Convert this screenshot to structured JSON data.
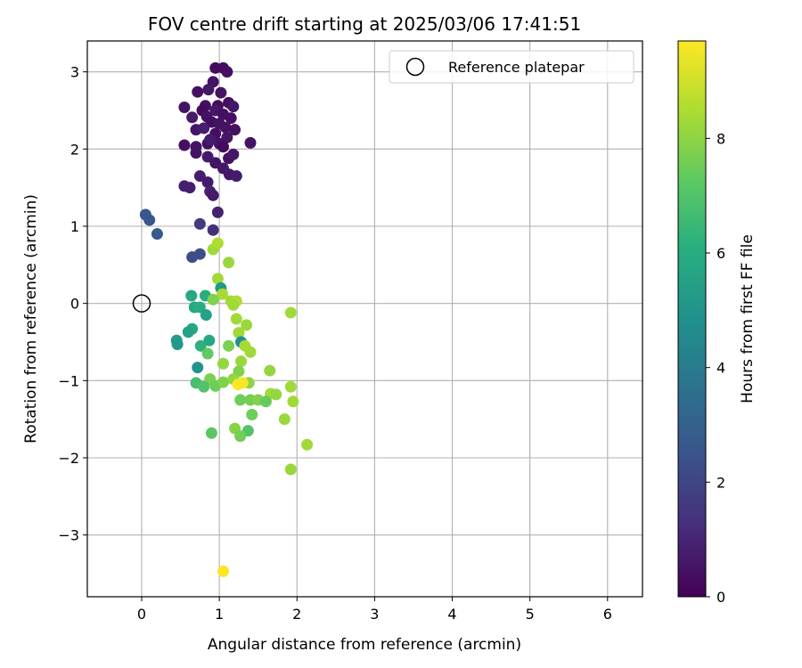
{
  "chart_data": {
    "type": "scatter",
    "title": "FOV centre drift starting at 2025/03/06 17:41:51",
    "xlabel": "Angular distance from reference (arcmin)",
    "ylabel": "Rotation from reference (arcmin)",
    "colorbar_label": "Hours from first FF file",
    "xlim": [
      -0.7,
      6.45
    ],
    "ylim": [
      -3.8,
      3.4
    ],
    "xticks": [
      0,
      1,
      2,
      3,
      4,
      5,
      6
    ],
    "yticks": [
      -3,
      -2,
      -1,
      0,
      1,
      2,
      3
    ],
    "xtick_labels": [
      "0",
      "1",
      "2",
      "3",
      "4",
      "5",
      "6"
    ],
    "ytick_labels": [
      "−3",
      "−2",
      "−1",
      "0",
      "1",
      "2",
      "3"
    ],
    "colorbar_range": [
      0,
      9.7
    ],
    "colorbar_ticks": [
      0,
      2,
      4,
      6,
      8
    ],
    "colorbar_tick_labels": [
      "0",
      "2",
      "4",
      "6",
      "8"
    ],
    "colormap": "viridis",
    "grid": true,
    "legend": {
      "placement": "top-right",
      "entries": [
        "Reference platepar"
      ]
    },
    "reference_point": {
      "x": 0,
      "y": 0
    },
    "points": [
      {
        "x": 0.95,
        "y": 3.05,
        "h": 0.3
      },
      {
        "x": 1.05,
        "y": 3.05,
        "h": 0.35
      },
      {
        "x": 1.1,
        "y": 3.0,
        "h": 0.4
      },
      {
        "x": 0.92,
        "y": 2.87,
        "h": 0.5
      },
      {
        "x": 0.72,
        "y": 2.74,
        "h": 0.4
      },
      {
        "x": 0.86,
        "y": 2.77,
        "h": 0.6
      },
      {
        "x": 1.02,
        "y": 2.73,
        "h": 0.5
      },
      {
        "x": 0.55,
        "y": 2.54,
        "h": 0.5
      },
      {
        "x": 0.82,
        "y": 2.56,
        "h": 0.4
      },
      {
        "x": 0.78,
        "y": 2.5,
        "h": 0.3
      },
      {
        "x": 0.98,
        "y": 2.56,
        "h": 0.3
      },
      {
        "x": 1.12,
        "y": 2.6,
        "h": 0.4
      },
      {
        "x": 1.18,
        "y": 2.55,
        "h": 0.6
      },
      {
        "x": 0.65,
        "y": 2.41,
        "h": 0.7
      },
      {
        "x": 0.84,
        "y": 2.42,
        "h": 0.5
      },
      {
        "x": 0.95,
        "y": 2.5,
        "h": 0.6
      },
      {
        "x": 1.05,
        "y": 2.45,
        "h": 0.4
      },
      {
        "x": 1.15,
        "y": 2.4,
        "h": 0.4
      },
      {
        "x": 0.9,
        "y": 2.35,
        "h": 0.3
      },
      {
        "x": 1.0,
        "y": 2.33,
        "h": 0.5
      },
      {
        "x": 1.08,
        "y": 2.28,
        "h": 0.5
      },
      {
        "x": 0.7,
        "y": 2.25,
        "h": 0.6
      },
      {
        "x": 0.8,
        "y": 2.27,
        "h": 0.8
      },
      {
        "x": 0.95,
        "y": 2.2,
        "h": 0.4
      },
      {
        "x": 1.1,
        "y": 2.15,
        "h": 0.6
      },
      {
        "x": 1.2,
        "y": 2.25,
        "h": 0.4
      },
      {
        "x": 0.55,
        "y": 2.05,
        "h": 0.4
      },
      {
        "x": 0.7,
        "y": 2.03,
        "h": 0.5
      },
      {
        "x": 0.85,
        "y": 2.07,
        "h": 0.4
      },
      {
        "x": 1.0,
        "y": 2.07,
        "h": 0.5
      },
      {
        "x": 1.05,
        "y": 2.03,
        "h": 0.3
      },
      {
        "x": 0.88,
        "y": 2.12,
        "h": 0.7
      },
      {
        "x": 1.4,
        "y": 2.08,
        "h": 0.5
      },
      {
        "x": 0.7,
        "y": 1.95,
        "h": 0.5
      },
      {
        "x": 0.85,
        "y": 1.9,
        "h": 0.7
      },
      {
        "x": 1.12,
        "y": 1.88,
        "h": 0.4
      },
      {
        "x": 1.18,
        "y": 1.93,
        "h": 0.6
      },
      {
        "x": 0.95,
        "y": 1.82,
        "h": 0.5
      },
      {
        "x": 1.05,
        "y": 1.75,
        "h": 0.6
      },
      {
        "x": 0.75,
        "y": 1.65,
        "h": 0.8
      },
      {
        "x": 0.85,
        "y": 1.57,
        "h": 0.7
      },
      {
        "x": 1.13,
        "y": 1.67,
        "h": 0.6
      },
      {
        "x": 1.22,
        "y": 1.65,
        "h": 0.7
      },
      {
        "x": 0.55,
        "y": 1.52,
        "h": 0.8
      },
      {
        "x": 0.62,
        "y": 1.5,
        "h": 0.8
      },
      {
        "x": 0.88,
        "y": 1.45,
        "h": 0.9
      },
      {
        "x": 0.92,
        "y": 1.4,
        "h": 0.7
      },
      {
        "x": 0.98,
        "y": 1.18,
        "h": 0.9
      },
      {
        "x": 0.05,
        "y": 1.15,
        "h": 2.7
      },
      {
        "x": 0.1,
        "y": 1.08,
        "h": 2.6
      },
      {
        "x": 0.2,
        "y": 0.9,
        "h": 2.8
      },
      {
        "x": 0.75,
        "y": 1.03,
        "h": 1.6
      },
      {
        "x": 0.92,
        "y": 0.95,
        "h": 1.3
      },
      {
        "x": 0.65,
        "y": 0.6,
        "h": 2.3
      },
      {
        "x": 0.75,
        "y": 0.64,
        "h": 2.3
      },
      {
        "x": 0.92,
        "y": 0.7,
        "h": 8.3
      },
      {
        "x": 0.98,
        "y": 0.78,
        "h": 8.5
      },
      {
        "x": 1.12,
        "y": 0.53,
        "h": 8.2
      },
      {
        "x": 0.98,
        "y": 0.32,
        "h": 8.3
      },
      {
        "x": 1.02,
        "y": 0.2,
        "h": 5.2
      },
      {
        "x": 1.04,
        "y": 0.12,
        "h": 8.4
      },
      {
        "x": 0.64,
        "y": 0.1,
        "h": 5.8
      },
      {
        "x": 0.82,
        "y": 0.1,
        "h": 6.0
      },
      {
        "x": 0.92,
        "y": 0.05,
        "h": 7.8
      },
      {
        "x": 1.15,
        "y": 0.03,
        "h": 8.3
      },
      {
        "x": 1.22,
        "y": 0.03,
        "h": 8.5
      },
      {
        "x": 1.18,
        "y": -0.02,
        "h": 8.3
      },
      {
        "x": 0.68,
        "y": -0.05,
        "h": 5.8
      },
      {
        "x": 0.75,
        "y": -0.05,
        "h": 6.0
      },
      {
        "x": 0.83,
        "y": -0.15,
        "h": 5.5
      },
      {
        "x": 1.22,
        "y": -0.2,
        "h": 8.3
      },
      {
        "x": 1.35,
        "y": -0.28,
        "h": 8.2
      },
      {
        "x": 1.92,
        "y": -0.12,
        "h": 8.3
      },
      {
        "x": 0.65,
        "y": -0.33,
        "h": 5.8
      },
      {
        "x": 0.6,
        "y": -0.37,
        "h": 5.5
      },
      {
        "x": 1.25,
        "y": -0.38,
        "h": 8.3
      },
      {
        "x": 0.45,
        "y": -0.48,
        "h": 5.3
      },
      {
        "x": 0.46,
        "y": -0.53,
        "h": 5.2
      },
      {
        "x": 0.87,
        "y": -0.48,
        "h": 5.8
      },
      {
        "x": 0.76,
        "y": -0.55,
        "h": 6.2
      },
      {
        "x": 1.28,
        "y": -0.5,
        "h": 4.8
      },
      {
        "x": 1.12,
        "y": -0.55,
        "h": 7.7
      },
      {
        "x": 1.33,
        "y": -0.55,
        "h": 8.4
      },
      {
        "x": 0.85,
        "y": -0.65,
        "h": 7.3
      },
      {
        "x": 1.4,
        "y": -0.63,
        "h": 8.3
      },
      {
        "x": 1.28,
        "y": -0.75,
        "h": 8.2
      },
      {
        "x": 1.05,
        "y": -0.78,
        "h": 8.1
      },
      {
        "x": 0.72,
        "y": -0.83,
        "h": 5.0
      },
      {
        "x": 1.25,
        "y": -0.88,
        "h": 7.8
      },
      {
        "x": 1.65,
        "y": -0.87,
        "h": 8.1
      },
      {
        "x": 0.88,
        "y": -0.98,
        "h": 7.7
      },
      {
        "x": 1.18,
        "y": -0.98,
        "h": 8.1
      },
      {
        "x": 1.38,
        "y": -1.03,
        "h": 8.0
      },
      {
        "x": 0.7,
        "y": -1.03,
        "h": 6.8
      },
      {
        "x": 0.8,
        "y": -1.08,
        "h": 7.0
      },
      {
        "x": 0.95,
        "y": -1.07,
        "h": 7.5
      },
      {
        "x": 1.05,
        "y": -1.02,
        "h": 7.8
      },
      {
        "x": 1.24,
        "y": -1.05,
        "h": 9.7
      },
      {
        "x": 1.3,
        "y": -1.03,
        "h": 9.6
      },
      {
        "x": 1.92,
        "y": -1.08,
        "h": 8.3
      },
      {
        "x": 1.66,
        "y": -1.17,
        "h": 8.3
      },
      {
        "x": 1.73,
        "y": -1.18,
        "h": 8.1
      },
      {
        "x": 1.27,
        "y": -1.25,
        "h": 7.5
      },
      {
        "x": 1.4,
        "y": -1.25,
        "h": 7.6
      },
      {
        "x": 1.5,
        "y": -1.25,
        "h": 7.8
      },
      {
        "x": 1.6,
        "y": -1.27,
        "h": 7.4
      },
      {
        "x": 1.95,
        "y": -1.27,
        "h": 8.3
      },
      {
        "x": 1.42,
        "y": -1.44,
        "h": 7.5
      },
      {
        "x": 1.84,
        "y": -1.5,
        "h": 8.2
      },
      {
        "x": 1.2,
        "y": -1.62,
        "h": 7.9
      },
      {
        "x": 1.37,
        "y": -1.65,
        "h": 7.0
      },
      {
        "x": 0.9,
        "y": -1.68,
        "h": 7.2
      },
      {
        "x": 1.27,
        "y": -1.72,
        "h": 7.6
      },
      {
        "x": 2.13,
        "y": -1.83,
        "h": 8.3
      },
      {
        "x": 1.92,
        "y": -2.15,
        "h": 8.2
      },
      {
        "x": 1.05,
        "y": -3.47,
        "h": 9.7
      }
    ]
  }
}
